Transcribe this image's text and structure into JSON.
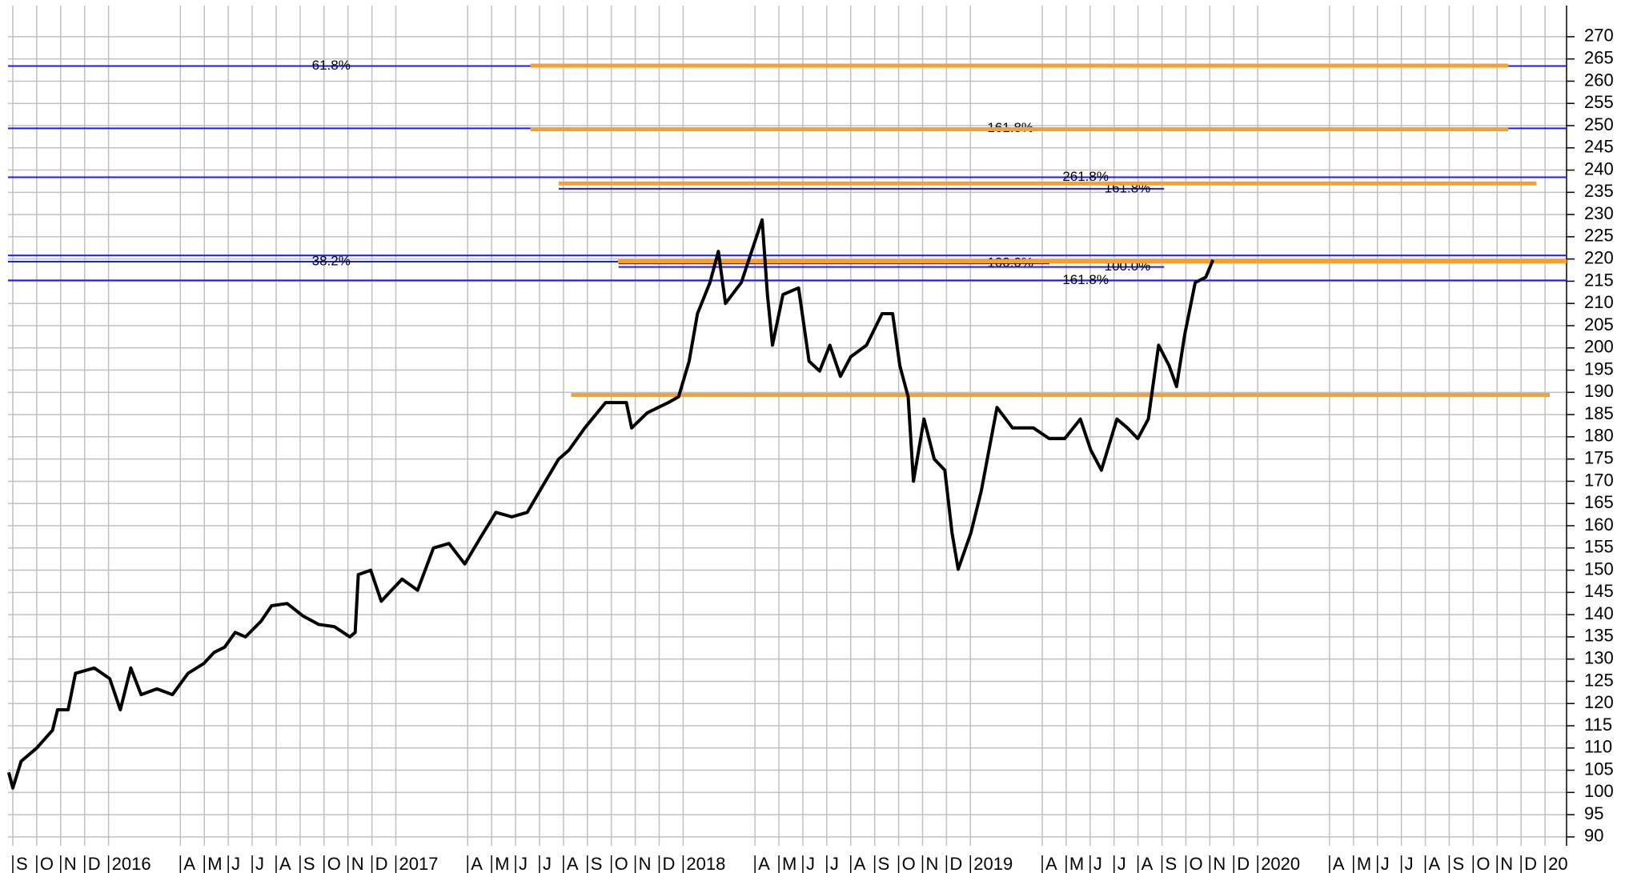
{
  "chart_data": {
    "type": "line",
    "x": [
      -0.17,
      0,
      0.35,
      1.0,
      1.66,
      1.87,
      2.31,
      2.62,
      3.4,
      4.05,
      4.49,
      4.93,
      5.36,
      6.02,
      6.67,
      7.32,
      7.98,
      8.41,
      8.85,
      9.29,
      9.72,
      10.37,
      10.81,
      11.46,
      12.12,
      12.77,
      13.43,
      14.08,
      14.3,
      14.43,
      14.95,
      15.39,
      15.82,
      16.26,
      16.91,
      17.57,
      18.22,
      18.88,
      19.53,
      20.18,
      20.84,
      21.49,
      22.14,
      22.8,
      23.23,
      23.89,
      24.76,
      25.63,
      25.85,
      26.5,
      27.38,
      27.81,
      28.25,
      28.6,
      29.12,
      29.47,
      29.77,
      30.43,
      30.86,
      31.3,
      31.52,
      31.73,
      32.17,
      32.82,
      33.26,
      33.7,
      34.13,
      34.57,
      35.0,
      35.66,
      36.31,
      36.75,
      37.05,
      37.4,
      37.62,
      38.06,
      38.49,
      38.93,
      39.23,
      39.49,
      40.02,
      40.45,
      41.11,
      41.76,
      42.63,
      43.29,
      43.94,
      44.59,
      45.03,
      45.47,
      46.12,
      46.56,
      46.99,
      47.43,
      47.86,
      48.3,
      48.61,
      48.95,
      49.39,
      49.83,
      50.13
    ],
    "series": [
      {
        "color": "#000000",
        "values": [
          104.5,
          101,
          107,
          110,
          114,
          118.6,
          118.6,
          126.8,
          128,
          125.6,
          118.6,
          128,
          122,
          123.3,
          122,
          126.8,
          129,
          131.5,
          132.7,
          136,
          135,
          138.5,
          142,
          142.5,
          139.7,
          137.8,
          137.3,
          135,
          136,
          149,
          150,
          143,
          145.5,
          148,
          145.5,
          155,
          156,
          151.4,
          157.3,
          163,
          162,
          163,
          169,
          175,
          177,
          182,
          187.7,
          187.7,
          182,
          185.4,
          187.7,
          189,
          197,
          207.7,
          214.7,
          221.7,
          210,
          214.7,
          221.7,
          228.8,
          212,
          200.6,
          212,
          213.5,
          197,
          194.8,
          200.6,
          193.6,
          198,
          200.6,
          207.7,
          207.7,
          196,
          189,
          170,
          184,
          175,
          172.5,
          158.4,
          150.2,
          158.4,
          167.8,
          186.6,
          182,
          182,
          179.6,
          179.6,
          184,
          177,
          172.5,
          184,
          182,
          179.6,
          184,
          200.6,
          196,
          191.3,
          203,
          214.7,
          215.9,
          219.8
        ]
      }
    ],
    "support_color": "#f5a030",
    "support_lines": [
      {
        "value": 263.5,
        "x0": 21.62,
        "x1": 62.47
      },
      {
        "value": 249.2,
        "x0": 21.62,
        "x1": 62.47
      },
      {
        "value": 237.0,
        "x0": 22.8,
        "x1": 63.64
      },
      {
        "value": 219.5,
        "x0": 25.28,
        "x1": 64.9
      },
      {
        "value": 189.4,
        "x0": 23.32,
        "x1": 64.2
      }
    ],
    "fib_color": "#1a1aff",
    "fib_lines": [
      {
        "value": 263.4,
        "label": "61.8%",
        "label_x": 13.3,
        "x0": -0.2,
        "x1": 64.9
      },
      {
        "value": 249.4,
        "label": "161.8%",
        "label_x": 41.67,
        "x0": -0.2,
        "x1": 64.9
      },
      {
        "value": 238.4,
        "label": "261.8%",
        "label_x": 44.81,
        "x0": -0.2,
        "x1": 64.9
      },
      {
        "value": 235.8,
        "label": "161.8%",
        "label_x": 46.56,
        "x0": 22.8,
        "x1": 48.09
      },
      {
        "value": 220.8,
        "x0": -0.2,
        "x1": 64.9
      },
      {
        "value": 219.4,
        "label": "38.2%",
        "label_x": 13.3,
        "x0": -0.2,
        "x1": 64.9
      },
      {
        "value": 219.0,
        "label": "100.0%",
        "label_x": 41.67,
        "x0": 25.3,
        "x1": 43.3
      },
      {
        "value": 218.2,
        "label": "100.0%",
        "label_x": 46.56,
        "x0": 25.3,
        "x1": 48.09
      },
      {
        "value": 215.2,
        "label": "161.8%",
        "label_x": 44.81,
        "x0": -0.2,
        "x1": 64.9
      }
    ],
    "xlim": [
      -0.2,
      64.9
    ],
    "xticks": [
      {
        "value": 0,
        "label": "S"
      },
      {
        "value": 1,
        "label": "O"
      },
      {
        "value": 2,
        "label": "N"
      },
      {
        "value": 3,
        "label": "D"
      },
      {
        "value": 4,
        "label": "2016"
      },
      {
        "value": 7,
        "label": "A"
      },
      {
        "value": 8,
        "label": "M"
      },
      {
        "value": 9,
        "label": "J"
      },
      {
        "value": 10,
        "label": "J"
      },
      {
        "value": 11,
        "label": "A"
      },
      {
        "value": 12,
        "label": "S"
      },
      {
        "value": 13,
        "label": "O"
      },
      {
        "value": 14,
        "label": "N"
      },
      {
        "value": 15,
        "label": "D"
      },
      {
        "value": 16,
        "label": "2017"
      },
      {
        "value": 19,
        "label": "A"
      },
      {
        "value": 20,
        "label": "M"
      },
      {
        "value": 21,
        "label": "J"
      },
      {
        "value": 22,
        "label": "J"
      },
      {
        "value": 23,
        "label": "A"
      },
      {
        "value": 24,
        "label": "S"
      },
      {
        "value": 25,
        "label": "O"
      },
      {
        "value": 26,
        "label": "N"
      },
      {
        "value": 27,
        "label": "D"
      },
      {
        "value": 28,
        "label": "2018"
      },
      {
        "value": 31,
        "label": "A"
      },
      {
        "value": 32,
        "label": "M"
      },
      {
        "value": 33,
        "label": "J"
      },
      {
        "value": 34,
        "label": "J"
      },
      {
        "value": 35,
        "label": "A"
      },
      {
        "value": 36,
        "label": "S"
      },
      {
        "value": 37,
        "label": "O"
      },
      {
        "value": 38,
        "label": "N"
      },
      {
        "value": 39,
        "label": "D"
      },
      {
        "value": 40,
        "label": "2019"
      },
      {
        "value": 43,
        "label": "A"
      },
      {
        "value": 44,
        "label": "M"
      },
      {
        "value": 45,
        "label": "J"
      },
      {
        "value": 46,
        "label": "J"
      },
      {
        "value": 47,
        "label": "A"
      },
      {
        "value": 48,
        "label": "S"
      },
      {
        "value": 49,
        "label": "O"
      },
      {
        "value": 50,
        "label": "N"
      },
      {
        "value": 51,
        "label": "D"
      },
      {
        "value": 52,
        "label": "2020"
      },
      {
        "value": 55,
        "label": "A"
      },
      {
        "value": 56,
        "label": "M"
      },
      {
        "value": 57,
        "label": "J"
      },
      {
        "value": 58,
        "label": "J"
      },
      {
        "value": 59,
        "label": "A"
      },
      {
        "value": 60,
        "label": "S"
      },
      {
        "value": 61,
        "label": "O"
      },
      {
        "value": 62,
        "label": "N"
      },
      {
        "value": 63,
        "label": "D"
      },
      {
        "value": 64,
        "label": "20"
      }
    ],
    "ylim": [
      88,
      277
    ],
    "yticks": [
      90,
      95,
      100,
      105,
      110,
      115,
      120,
      125,
      130,
      135,
      140,
      145,
      150,
      155,
      160,
      165,
      170,
      175,
      180,
      185,
      190,
      195,
      200,
      205,
      210,
      215,
      220,
      225,
      230,
      235,
      240,
      245,
      250,
      255,
      260,
      265,
      270
    ],
    "grid": true
  }
}
